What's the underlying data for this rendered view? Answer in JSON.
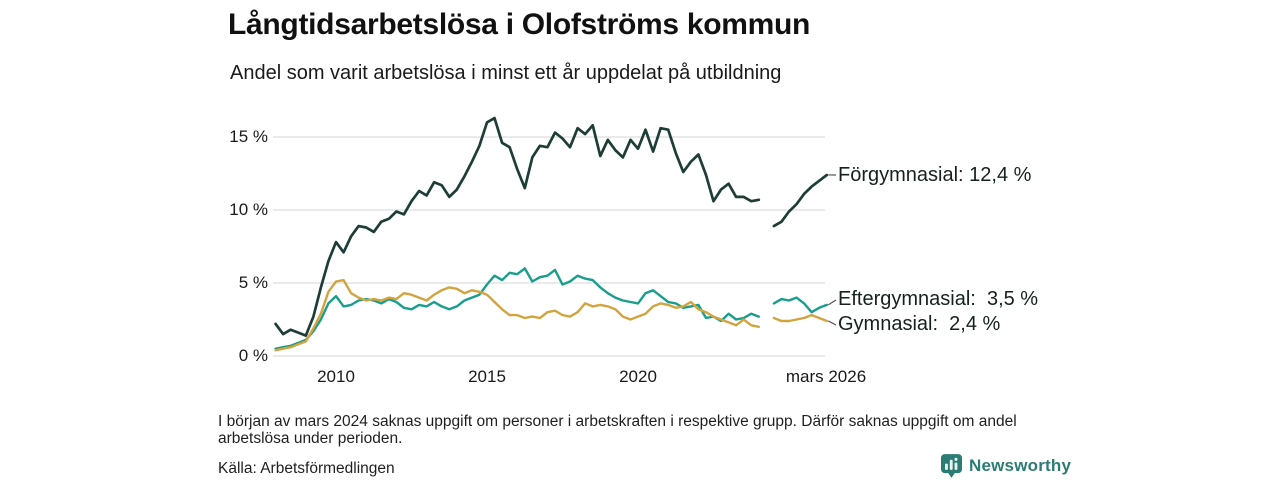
{
  "header": {
    "title": "Långtidsarbetslösa i Olofströms kommun",
    "subtitle": "Andel som varit arbetslösa i minst ett år uppdelat på utbildning"
  },
  "footer": {
    "note": "I början av mars 2024 saknas uppgift om personer i arbetskraften i respektive grupp. Därför saknas uppgift om andel arbetslösa under perioden.",
    "source": "Källa: Arbetsförmedlingen"
  },
  "branding": {
    "name": "Newsworthy",
    "icon": "bar-chart-bubble-icon",
    "color": "#2b7d73"
  },
  "colors": {
    "forgymnasial": "#1d3d36",
    "eftergymnasial": "#199d8d",
    "gymnasial": "#d2a440",
    "gridline": "#dedede",
    "leader": "#555555",
    "text": "#1a1a1a"
  },
  "chart_data": {
    "type": "line",
    "title": "Långtidsarbetslösa i Olofströms kommun",
    "subtitle": "Andel som varit arbetslösa i minst ett år uppdelat på utbildning",
    "ylabel": "",
    "xlabel": "",
    "ylim": [
      0,
      17
    ],
    "grid": "horizontal",
    "legend_position": "right-end-labels",
    "gap_note": "data missing around mars 2024",
    "x": [
      2008.0,
      2008.25,
      2008.5,
      2008.75,
      2009.0,
      2009.25,
      2009.5,
      2009.75,
      2010.0,
      2010.25,
      2010.5,
      2010.75,
      2011.0,
      2011.25,
      2011.5,
      2011.75,
      2012.0,
      2012.25,
      2012.5,
      2012.75,
      2013.0,
      2013.25,
      2013.5,
      2013.75,
      2014.0,
      2014.25,
      2014.5,
      2014.75,
      2015.0,
      2015.25,
      2015.5,
      2015.75,
      2016.0,
      2016.25,
      2016.5,
      2016.75,
      2017.0,
      2017.25,
      2017.5,
      2017.75,
      2018.0,
      2018.25,
      2018.5,
      2018.75,
      2019.0,
      2019.25,
      2019.5,
      2019.75,
      2020.0,
      2020.25,
      2020.5,
      2020.75,
      2021.0,
      2021.25,
      2021.5,
      2021.75,
      2022.0,
      2022.25,
      2022.5,
      2022.75,
      2023.0,
      2023.25,
      2023.5,
      2023.75,
      2024.0,
      2024.25,
      2024.5,
      2024.75,
      2025.0,
      2025.25,
      2025.5,
      2025.75,
      2026.0,
      2026.25
    ],
    "series": [
      {
        "name": "Förgymnasial",
        "end_value_text": "12,4 %",
        "color": "#1d3d36",
        "values": [
          2.2,
          1.5,
          1.8,
          1.6,
          1.4,
          2.7,
          4.7,
          6.5,
          7.8,
          7.1,
          8.2,
          8.9,
          8.8,
          8.5,
          9.2,
          9.4,
          9.9,
          9.7,
          10.6,
          11.3,
          11.0,
          11.9,
          11.7,
          10.9,
          11.4,
          12.3,
          13.3,
          14.4,
          16.0,
          16.3,
          14.6,
          14.3,
          12.8,
          11.5,
          13.6,
          14.4,
          14.3,
          15.3,
          14.9,
          14.3,
          15.6,
          15.2,
          15.8,
          13.7,
          14.8,
          14.1,
          13.6,
          14.8,
          14.2,
          15.5,
          14.0,
          15.6,
          15.5,
          13.9,
          12.6,
          13.3,
          13.8,
          12.4,
          10.6,
          11.4,
          11.8,
          10.9,
          10.9,
          10.6,
          10.7,
          null,
          8.9,
          9.2,
          9.9,
          10.4,
          11.1,
          11.6,
          12.0,
          12.4
        ]
      },
      {
        "name": "Eftergymnasial",
        "end_value_text": "3,5 %",
        "color": "#199d8d",
        "values": [
          0.5,
          0.6,
          0.7,
          0.9,
          1.1,
          1.7,
          2.5,
          3.6,
          4.1,
          3.4,
          3.5,
          3.8,
          3.9,
          3.8,
          3.6,
          3.9,
          3.7,
          3.3,
          3.2,
          3.5,
          3.4,
          3.7,
          3.4,
          3.2,
          3.4,
          3.8,
          4.0,
          4.2,
          4.9,
          5.5,
          5.2,
          5.7,
          5.6,
          6.0,
          5.1,
          5.4,
          5.5,
          5.9,
          4.9,
          5.1,
          5.5,
          5.3,
          5.2,
          4.7,
          4.3,
          4.0,
          3.8,
          3.7,
          3.6,
          4.3,
          4.5,
          4.1,
          3.7,
          3.6,
          3.3,
          3.4,
          3.5,
          2.6,
          2.7,
          2.4,
          2.9,
          2.5,
          2.6,
          2.9,
          2.7,
          null,
          3.6,
          3.9,
          3.8,
          4.0,
          3.6,
          3.0,
          3.3,
          3.5
        ]
      },
      {
        "name": "Gymnasial",
        "end_value_text": "2,4 %",
        "color": "#d2a440",
        "values": [
          0.4,
          0.5,
          0.6,
          0.8,
          1.0,
          1.9,
          2.9,
          4.4,
          5.1,
          5.2,
          4.3,
          4.0,
          3.8,
          3.9,
          3.8,
          4.0,
          3.9,
          4.3,
          4.2,
          4.0,
          3.8,
          4.2,
          4.5,
          4.7,
          4.6,
          4.3,
          4.5,
          4.4,
          4.2,
          3.7,
          3.2,
          2.8,
          2.8,
          2.6,
          2.7,
          2.6,
          3.0,
          3.1,
          2.8,
          2.7,
          3.0,
          3.6,
          3.4,
          3.5,
          3.4,
          3.2,
          2.7,
          2.5,
          2.7,
          2.9,
          3.4,
          3.6,
          3.5,
          3.3,
          3.4,
          3.7,
          3.2,
          3.0,
          2.7,
          2.5,
          2.3,
          2.1,
          2.5,
          2.1,
          2.0,
          null,
          2.6,
          2.4,
          2.4,
          2.5,
          2.6,
          2.8,
          2.6,
          2.4
        ]
      }
    ],
    "yticks": [
      {
        "value": 0,
        "label": "0 %"
      },
      {
        "value": 5,
        "label": "5 %"
      },
      {
        "value": 10,
        "label": "10 %"
      },
      {
        "value": 15,
        "label": "15 %"
      }
    ],
    "xticks": [
      {
        "value": 2010,
        "label": "2010"
      },
      {
        "value": 2015,
        "label": "2015"
      },
      {
        "value": 2020,
        "label": "2020"
      },
      {
        "value": 2026.2,
        "label": "mars 2026"
      }
    ],
    "end_labels": [
      {
        "series": "Förgymnasial",
        "text": "Förgymnasial: 12,4 %"
      },
      {
        "series": "Eftergymnasial",
        "text": "Eftergymnasial:  3,5 %"
      },
      {
        "series": "Gymnasial",
        "text": "Gymnasial:  2,4 %"
      }
    ]
  }
}
